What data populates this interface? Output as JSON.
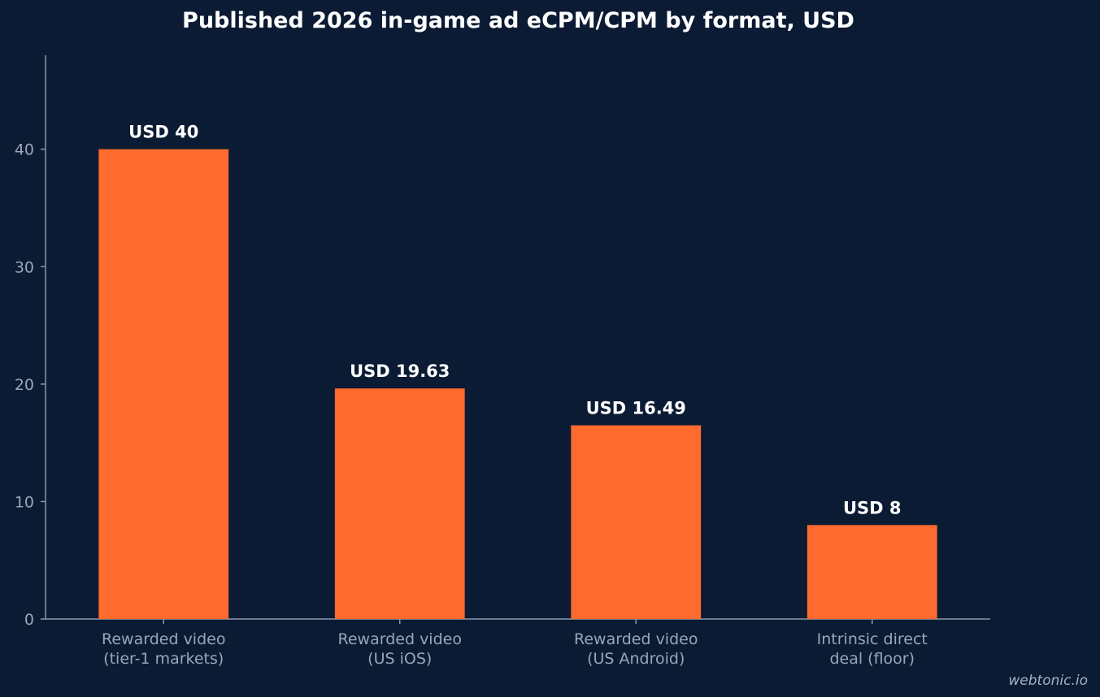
{
  "chart_data": {
    "type": "bar",
    "title": "Published 2026 in-game ad eCPM/CPM by format, USD",
    "xlabel": "",
    "ylabel": "",
    "ylim": [
      0,
      48
    ],
    "yticks": [
      0,
      10,
      20,
      30,
      40
    ],
    "categories": [
      [
        "Rewarded video",
        "(tier-1 markets)"
      ],
      [
        "Rewarded video",
        "(US iOS)"
      ],
      [
        "Rewarded video",
        "(US Android)"
      ],
      [
        "Intrinsic direct",
        "deal (floor)"
      ]
    ],
    "values": [
      40,
      19.63,
      16.49,
      8
    ],
    "data_labels": [
      "USD 40",
      "USD 19.63",
      "USD 16.49",
      "USD 8"
    ],
    "grid": false,
    "legend": "none",
    "colors": {
      "bar": "#ff6b2e",
      "background": "#0b1b34",
      "axis": "#8a98ae",
      "tick_text": "#9aa6b8",
      "label_text": "#ffffff"
    }
  },
  "watermark": "webtonic.io"
}
